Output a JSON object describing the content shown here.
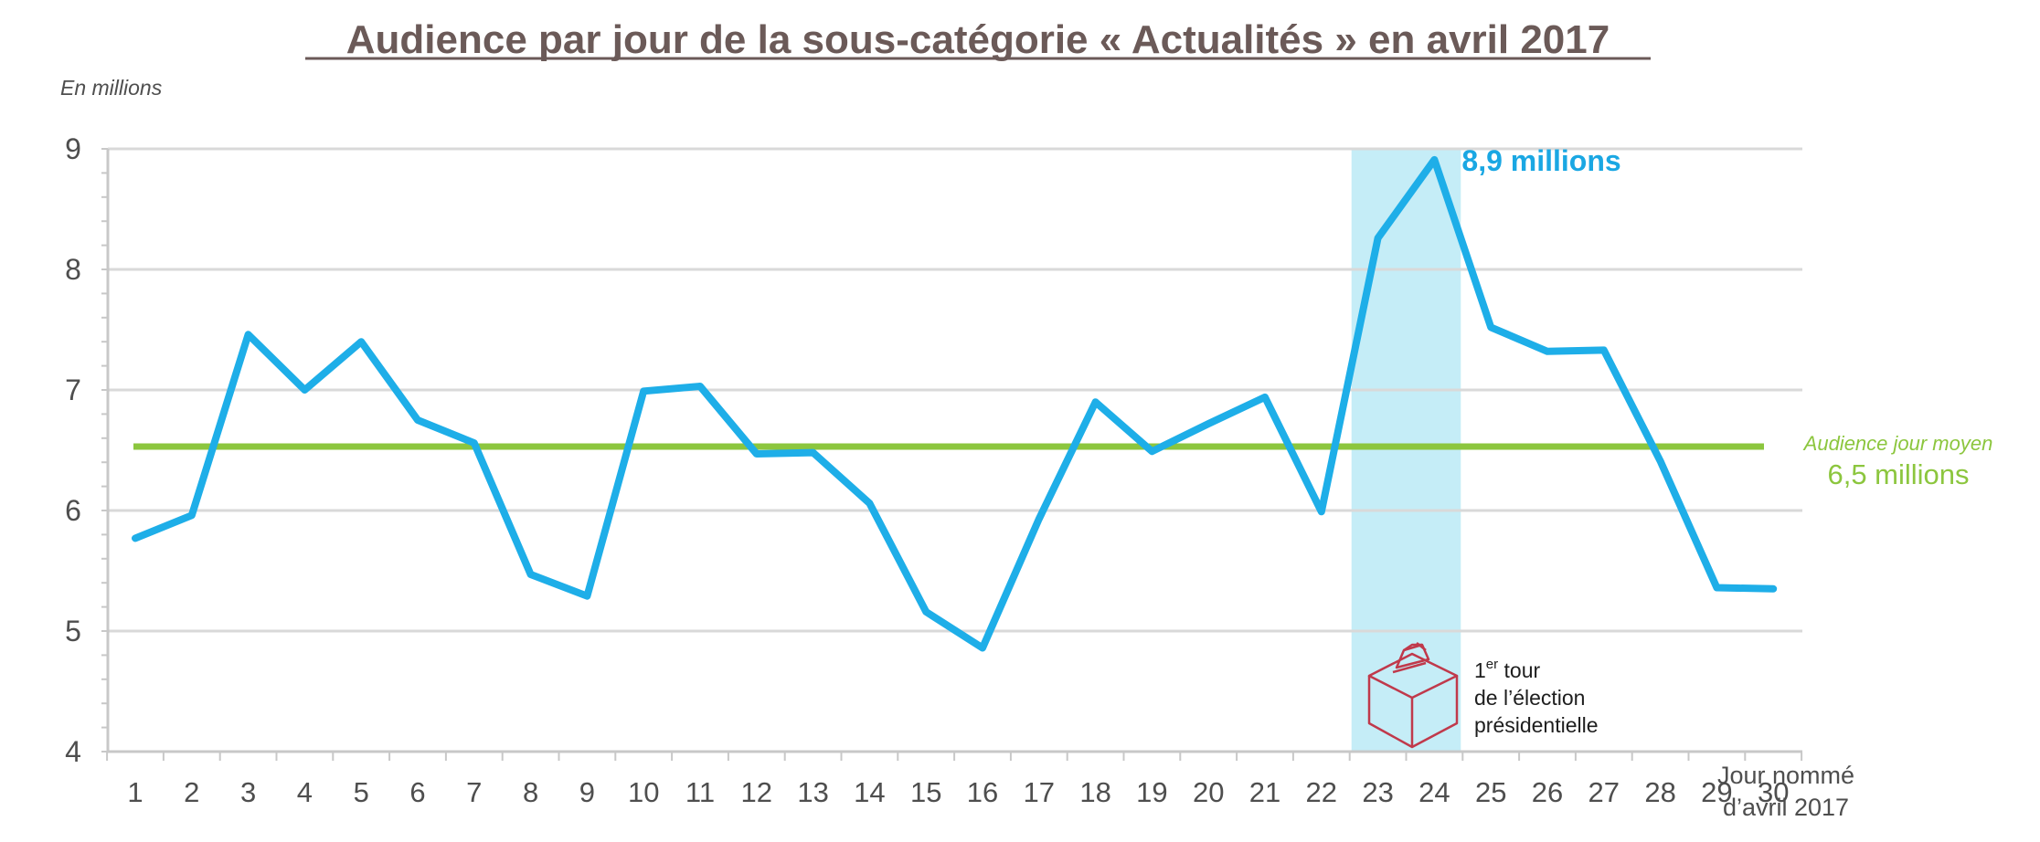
{
  "chart_data": {
    "type": "line",
    "title": "Audience par jour de la sous-catégorie « Actualités » en avril 2017",
    "unit_label": "En millions",
    "xlabel_line1": "Jour nommé",
    "xlabel_line2": "d’avril 2017",
    "ylabel": "",
    "ylim": [
      4,
      9
    ],
    "yticks": [
      4,
      5,
      6,
      7,
      8,
      9
    ],
    "grid": true,
    "x": [
      "1",
      "2",
      "3",
      "4",
      "5",
      "6",
      "7",
      "8",
      "9",
      "10",
      "11",
      "12",
      "13",
      "14",
      "15",
      "16",
      "17",
      "18",
      "19",
      "20",
      "21",
      "22",
      "23",
      "24",
      "25",
      "26",
      "27",
      "28",
      "29",
      "30"
    ],
    "series": [
      {
        "name": "Audience",
        "color": "#1eaee8",
        "values": [
          5.77,
          5.96,
          7.46,
          7.0,
          7.4,
          6.75,
          6.56,
          5.47,
          5.29,
          6.99,
          7.03,
          6.47,
          6.48,
          6.06,
          5.16,
          4.86,
          5.93,
          6.9,
          6.49,
          6.72,
          6.94,
          5.99,
          8.26,
          8.91,
          7.52,
          7.32,
          7.33,
          6.41,
          5.36,
          5.35
        ]
      }
    ],
    "average": {
      "value": 6.53,
      "color": "#8cc63e",
      "label": "Audience jour moyen",
      "value_text": "6,5 millions"
    },
    "peak_annotation": {
      "day": "24",
      "text": "8,9 millions",
      "color": "#1aa7e3"
    },
    "highlight": {
      "from_day": "23",
      "to_day": "24",
      "color": "#c5edf7",
      "event_sup": "er",
      "event_line1_prefix": "1",
      "event_line1_suffix": " tour",
      "event_line2": "de l’élection",
      "event_line3": "présidentielle",
      "event_icon": "ballot-box-icon",
      "event_icon_color": "#c0394b"
    },
    "colors": {
      "title": "#6b5a58",
      "text": "#4e4e4e",
      "grid": "#d9d9d9",
      "axis": "#c8c8c8"
    }
  }
}
